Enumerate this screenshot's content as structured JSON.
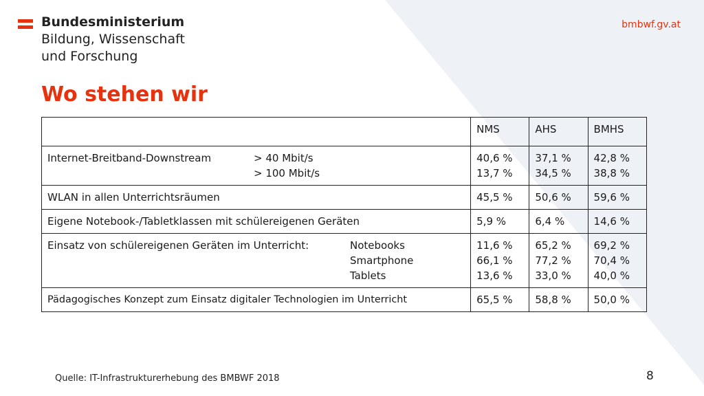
{
  "header": {
    "ministry_line1": "Bundesministerium",
    "ministry_line2": "Bildung, Wissenschaft",
    "ministry_line3": "und Forschung",
    "website": "bmbwf.gv.at"
  },
  "slide": {
    "title": "Wo stehen wir",
    "source": "Quelle: IT-Infrastrukturerhebung des BMBWF 2018",
    "page_number": "8"
  },
  "colors": {
    "accent": "#e6320f",
    "bg_shape": "#eef1f6"
  },
  "table": {
    "headers": [
      "",
      "NMS",
      "AHS",
      "BMHS"
    ],
    "rows": [
      {
        "label": "Internet-Breitband-Downstream",
        "sub": [
          "> 40 Mbit/s",
          "> 100 Mbit/s"
        ],
        "nms": [
          "40,6 %",
          "13,7 %"
        ],
        "ahs": [
          "37,1 %",
          "34,5 %"
        ],
        "bmhs": [
          "42,8 %",
          "38,8 %"
        ]
      },
      {
        "label": "WLAN in allen Unterrichtsräumen",
        "nms": [
          "45,5 %"
        ],
        "ahs": [
          "50,6 %"
        ],
        "bmhs": [
          "59,6 %"
        ]
      },
      {
        "label": "Eigene Notebook-/Tabletklassen mit schülereigenen Geräten",
        "nms": [
          "5,9 %"
        ],
        "ahs": [
          "6,4 %"
        ],
        "bmhs": [
          "14,6 %"
        ]
      },
      {
        "label": "Einsatz von schülereigenen Geräten im Unterricht:",
        "sub": [
          "Notebooks",
          "Smartphone",
          "Tablets"
        ],
        "nms": [
          "11,6 %",
          "66,1 %",
          "13,6 %"
        ],
        "ahs": [
          "65,2 %",
          "77,2 %",
          "33,0 %"
        ],
        "bmhs": [
          "69,2 %",
          "70,4 %",
          "40,0 %"
        ]
      },
      {
        "label": "Pädagogisches Konzept zum Einsatz digitaler Technologien im Unterricht",
        "nms": [
          "65,5 %"
        ],
        "ahs": [
          "58,8 %"
        ],
        "bmhs": [
          "50,0 %"
        ]
      }
    ]
  }
}
